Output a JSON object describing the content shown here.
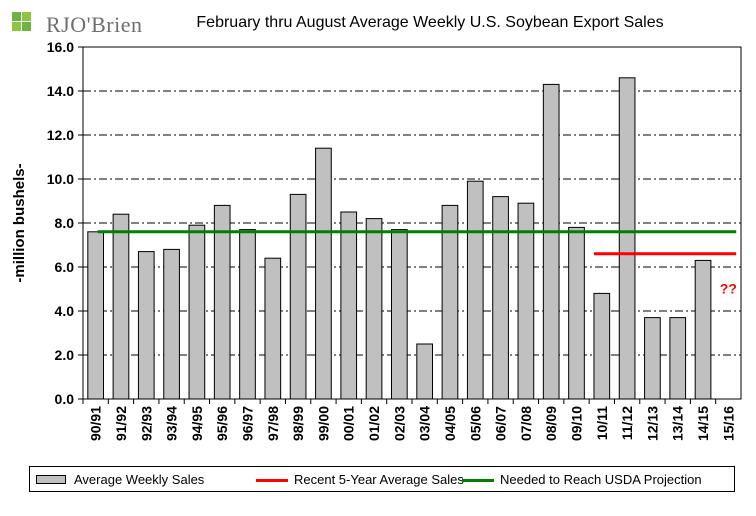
{
  "logo": {
    "text": "RJO'Brien"
  },
  "colors": {
    "bar_fill": "#c0c0c0",
    "recent_avg": "#ff0000",
    "needed": "#008000",
    "annotation": "#ff0000",
    "logo_green": "#6db33f"
  },
  "chart_data": {
    "type": "bar",
    "title": "February thru August Average Weekly U.S. Soybean Export Sales",
    "ylabel": "-million bushels-",
    "xlabel": "",
    "ylim": [
      0,
      16
    ],
    "yticks": [
      "0.0",
      "2.0",
      "4.0",
      "6.0",
      "8.0",
      "10.0",
      "12.0",
      "14.0",
      "16.0"
    ],
    "grid": "horizontal-dash-dot",
    "legend_position": "bottom",
    "categories": [
      "90/91",
      "91/92",
      "92/93",
      "93/94",
      "94/95",
      "95/96",
      "96/97",
      "97/98",
      "98/99",
      "99/00",
      "00/01",
      "01/02",
      "02/03",
      "03/04",
      "04/05",
      "05/06",
      "06/07",
      "07/08",
      "08/09",
      "09/10",
      "10/11",
      "11/12",
      "12/13",
      "13/14",
      "14/15",
      "15/16"
    ],
    "series": [
      {
        "name": "Average Weekly Sales",
        "kind": "bar",
        "values": [
          7.6,
          8.4,
          6.7,
          6.8,
          7.9,
          8.8,
          7.7,
          6.4,
          9.3,
          11.4,
          8.5,
          8.2,
          7.7,
          2.5,
          8.8,
          9.9,
          9.2,
          8.9,
          14.3,
          7.8,
          4.8,
          14.6,
          3.7,
          3.7,
          6.3,
          null
        ]
      },
      {
        "name": "Recent 5-Year Average Sales",
        "kind": "line",
        "from": "10/11",
        "to": "15/16",
        "value": 6.6
      },
      {
        "name": "Needed to Reach USDA Projection",
        "kind": "line",
        "from": "90/91",
        "to": "15/16",
        "value": 7.6
      }
    ],
    "annotations": [
      {
        "text": "??",
        "at": "15/16",
        "y": 4.8
      }
    ]
  }
}
